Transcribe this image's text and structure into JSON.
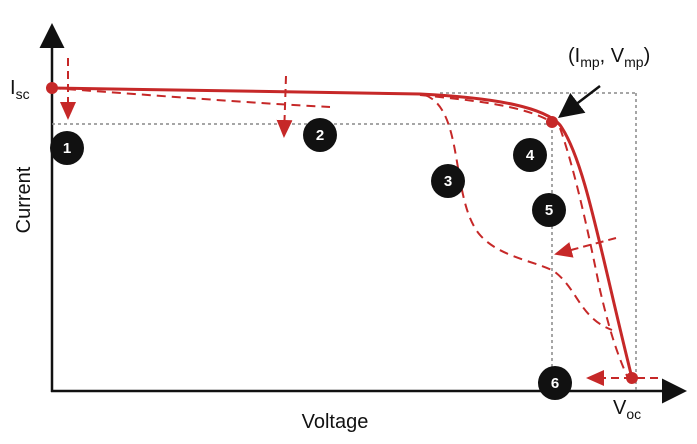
{
  "axes": {
    "y_label": "Current",
    "x_label": "Voltage"
  },
  "points": {
    "isc": [
      "I",
      "sc"
    ],
    "mpp": [
      "(I",
      "mp",
      ", V",
      "mp",
      ")"
    ],
    "voc": [
      "V",
      "oc"
    ]
  },
  "markers": [
    "1",
    "2",
    "3",
    "4",
    "5",
    "6"
  ]
}
